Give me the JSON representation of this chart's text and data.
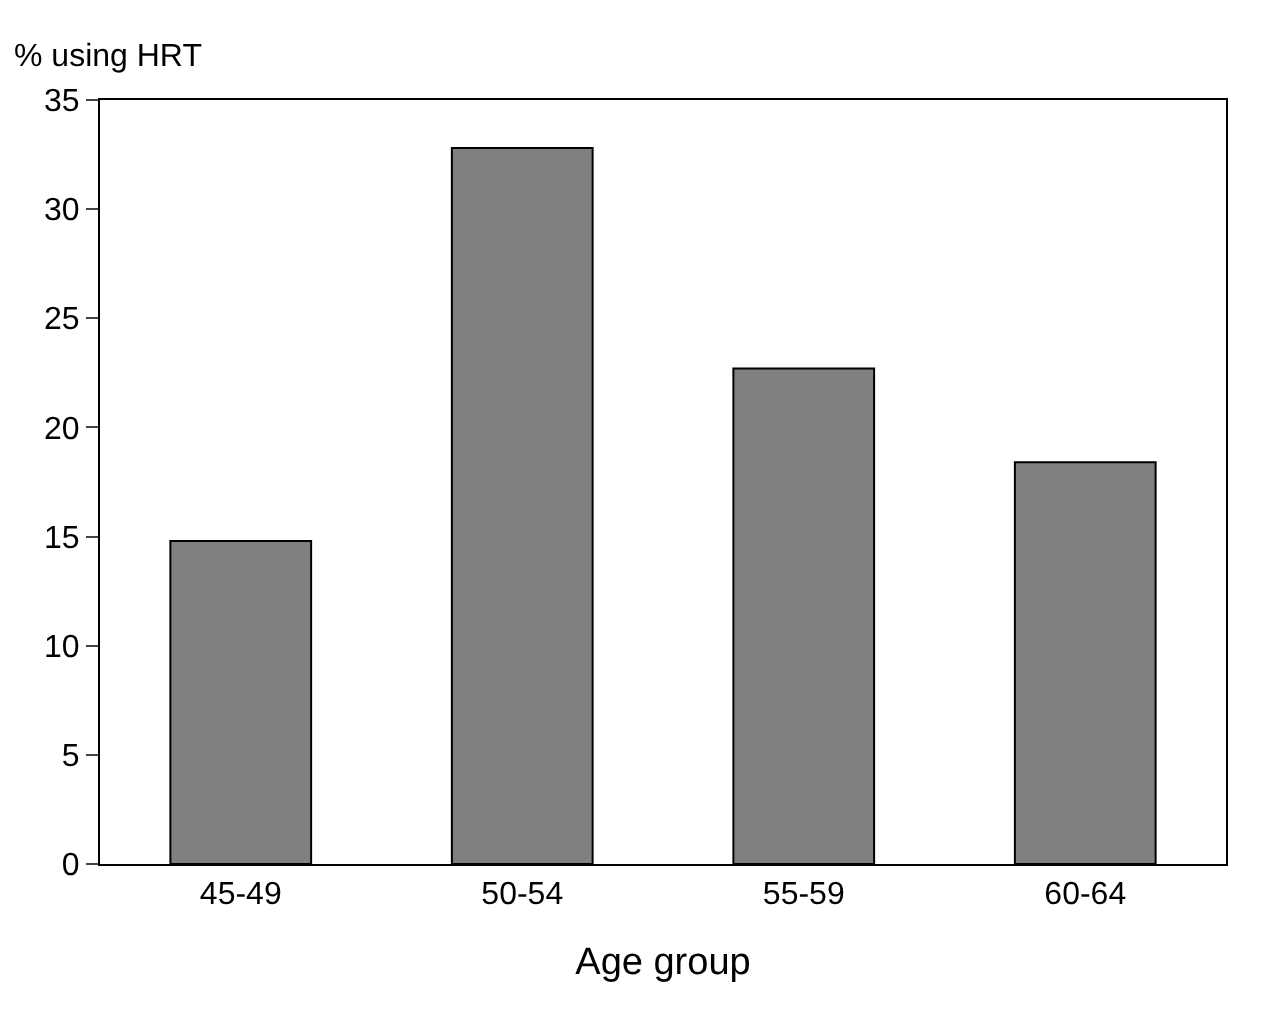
{
  "chart_data": {
    "type": "bar",
    "xlabel": "Age group",
    "ylabel": "% using HRT",
    "categories": [
      "45-49",
      "50-54",
      "55-59",
      "60-64"
    ],
    "values": [
      14.8,
      32.8,
      22.7,
      18.4
    ],
    "color": "#808080",
    "ylim": [
      0,
      35
    ],
    "yticks": [
      0,
      5,
      10,
      15,
      20,
      25,
      30,
      35
    ],
    "grid": false,
    "legend": false
  }
}
